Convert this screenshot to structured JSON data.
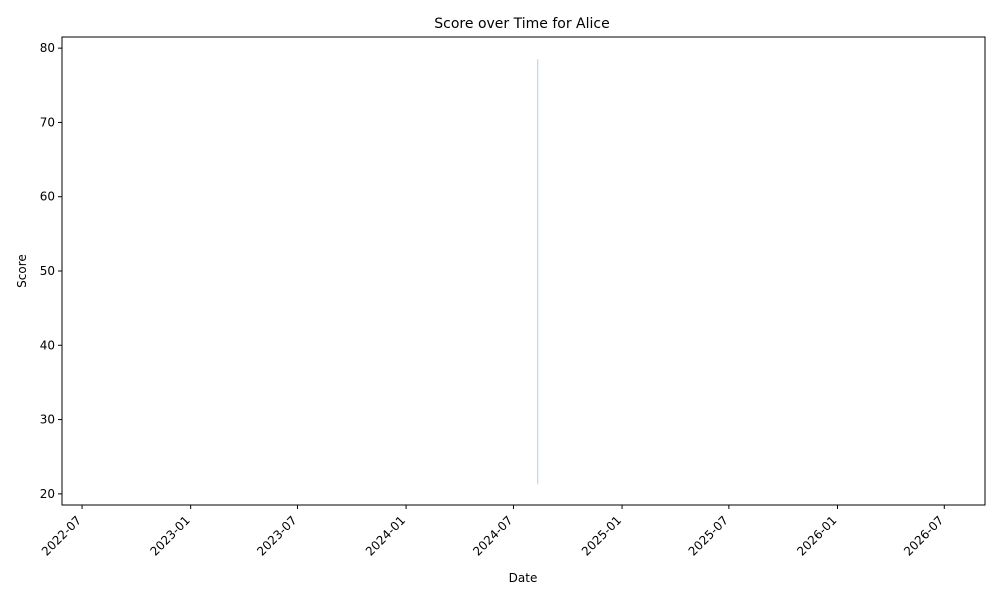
{
  "chart_data": {
    "type": "area",
    "title": "Score over Time for Alice",
    "xlabel": "Date",
    "ylabel": "Score",
    "x_ticks": [
      "2022-07",
      "2023-01",
      "2023-07",
      "2024-01",
      "2024-07",
      "2025-01",
      "2025-07",
      "2026-01",
      "2026-07"
    ],
    "y_ticks": [
      20,
      30,
      40,
      50,
      60,
      70,
      80
    ],
    "xlim": [
      "2022-05-28",
      "2026-09-08"
    ],
    "ylim": [
      18.5,
      81.5
    ],
    "grid": false,
    "legend": "none",
    "series": [
      {
        "color": "#c6dbef",
        "points": [
          {
            "x": "2024-08-11",
            "y_low": 21.3,
            "y_high": 78.5
          }
        ]
      }
    ]
  }
}
